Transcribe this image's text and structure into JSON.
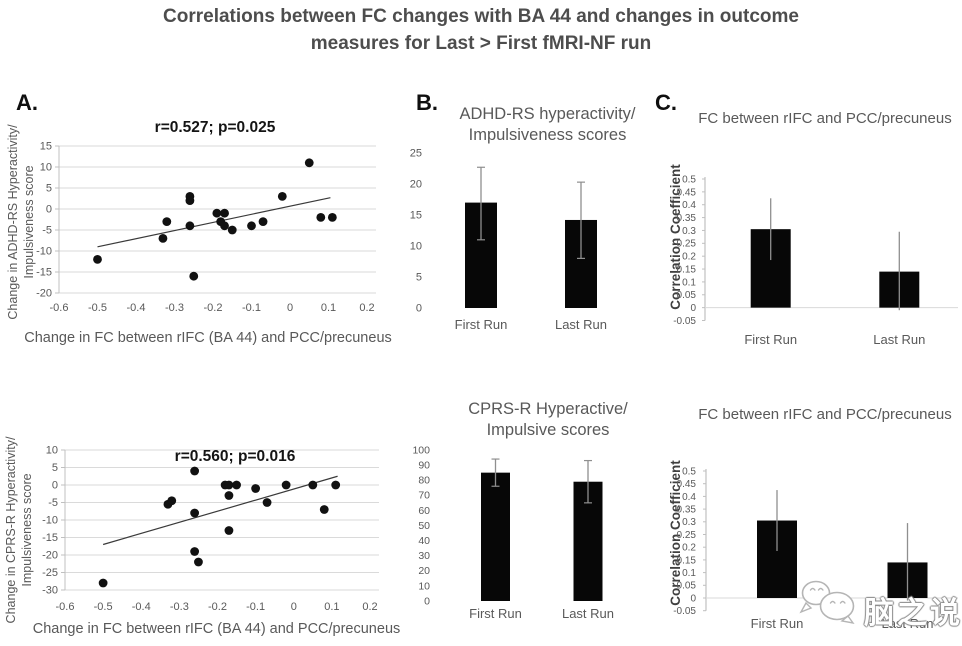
{
  "figure_title": {
    "line1": "Correlations between FC changes with BA 44 and changes in outcome",
    "line2": "measures for Last > First fMRI-NF run"
  },
  "panel_labels": {
    "a": "A.",
    "b": "B.",
    "c": "C."
  },
  "watermark": {
    "text": "脑之说",
    "icon": "chat-face-logo"
  },
  "colors": {
    "title_text": "#4d4d4d",
    "axis_text": "#595959",
    "grid": "#dadada",
    "axis_line": "#c0c0c0",
    "bar": "#070707",
    "point": "#111111",
    "trend": "#3a3a3a",
    "error": "#8f8f8f"
  },
  "chart_data": [
    {
      "id": "scatter-adhd-rs",
      "type": "scatter",
      "stat_label": "r=0.527; p=0.025",
      "ylabel_line1": "Change in ADHD-RS Hyperactivity/",
      "ylabel_line2": "Impulsiveness score",
      "xlabel": "Change in FC between rIFC (BA 44) and PCC/precuneus",
      "xlim": [
        -0.6,
        0.2
      ],
      "xtick_step": 0.1,
      "ylim": [
        -20,
        15
      ],
      "ytick_step": 5,
      "points": [
        [
          -0.5,
          -12
        ],
        [
          -0.33,
          -7
        ],
        [
          -0.32,
          -3
        ],
        [
          -0.26,
          3
        ],
        [
          -0.26,
          2
        ],
        [
          -0.26,
          -4
        ],
        [
          -0.25,
          -16
        ],
        [
          -0.19,
          -1
        ],
        [
          -0.17,
          -1
        ],
        [
          -0.18,
          -3
        ],
        [
          -0.17,
          -4
        ],
        [
          -0.15,
          -5
        ],
        [
          -0.1,
          -4
        ],
        [
          -0.07,
          -3
        ],
        [
          -0.02,
          3
        ],
        [
          0.05,
          11
        ],
        [
          0.08,
          -2
        ],
        [
          0.11,
          -2
        ]
      ],
      "trendline": [
        [
          -0.5,
          -9
        ],
        [
          0.105,
          2.7
        ]
      ]
    },
    {
      "id": "bar-adhd-rs",
      "type": "bar",
      "title_line1": "ADHD-RS hyperactivity/",
      "title_line2": "Impulsiveness scores",
      "categories": [
        "First Run",
        "Last Run"
      ],
      "values": [
        17,
        14.2
      ],
      "error_low": [
        11,
        8
      ],
      "error_high": [
        22.7,
        20.3
      ],
      "ylim": [
        0,
        25
      ],
      "ytick_step": 5,
      "error_caps": true,
      "axis_line": false,
      "zero_line": false
    },
    {
      "id": "bar-fc-top",
      "type": "bar",
      "title_line1": "FC between rIFC and PCC/precuneus",
      "ylabel": "Correlation Coefficient",
      "categories": [
        "First Run",
        "Last Run"
      ],
      "values": [
        0.305,
        0.14
      ],
      "error_low": [
        0.185,
        -0.01
      ],
      "error_high": [
        0.425,
        0.295
      ],
      "ylim": [
        -0.05,
        0.5
      ],
      "ytick_step": 0.05,
      "error_caps": false,
      "axis_line": true,
      "zero_line": true
    },
    {
      "id": "scatter-cprs-r",
      "type": "scatter",
      "stat_label": "r=0.560; p=0.016",
      "ylabel_line1": "Change in CPRS-R Hyperactivity/",
      "ylabel_line2": "Impulsiveness score",
      "xlabel": "Change in FC between rIFC (BA 44) and PCC/precuneus",
      "xlim": [
        -0.6,
        0.2
      ],
      "xtick_step": 0.1,
      "ylim": [
        -30,
        10
      ],
      "ytick_step": 5,
      "points": [
        [
          -0.5,
          -28
        ],
        [
          -0.33,
          -5.5
        ],
        [
          -0.32,
          -4.5
        ],
        [
          -0.26,
          4
        ],
        [
          -0.26,
          -8
        ],
        [
          -0.26,
          -19
        ],
        [
          -0.25,
          -22
        ],
        [
          -0.18,
          0
        ],
        [
          -0.17,
          0
        ],
        [
          -0.15,
          0
        ],
        [
          -0.17,
          -3
        ],
        [
          -0.17,
          -13
        ],
        [
          -0.1,
          -1
        ],
        [
          -0.07,
          -5
        ],
        [
          -0.02,
          0
        ],
        [
          0.05,
          0
        ],
        [
          0.08,
          -7
        ],
        [
          0.11,
          0
        ]
      ],
      "trendline": [
        [
          -0.5,
          -17
        ],
        [
          0.115,
          2.5
        ]
      ]
    },
    {
      "id": "bar-cprs-r",
      "type": "bar",
      "title_line1": "CPRS-R Hyperactive/",
      "title_line2": "Impulsive scores",
      "categories": [
        "First Run",
        "Last Run"
      ],
      "values": [
        85,
        79
      ],
      "error_low": [
        76,
        65
      ],
      "error_high": [
        94,
        93
      ],
      "ylim": [
        0,
        100
      ],
      "ytick_step": 10,
      "error_caps": true,
      "axis_line": false,
      "zero_line": false
    },
    {
      "id": "bar-fc-bottom",
      "type": "bar",
      "title_line1": "FC between rIFC and PCC/precuneus",
      "ylabel": "Correlation Coefficient",
      "categories": [
        "First Run",
        "Last Run"
      ],
      "values": [
        0.305,
        0.14
      ],
      "error_low": [
        0.185,
        -0.01
      ],
      "error_high": [
        0.425,
        0.295
      ],
      "ylim": [
        -0.05,
        0.5
      ],
      "ytick_step": 0.05,
      "error_caps": false,
      "axis_line": true,
      "zero_line": true
    }
  ]
}
